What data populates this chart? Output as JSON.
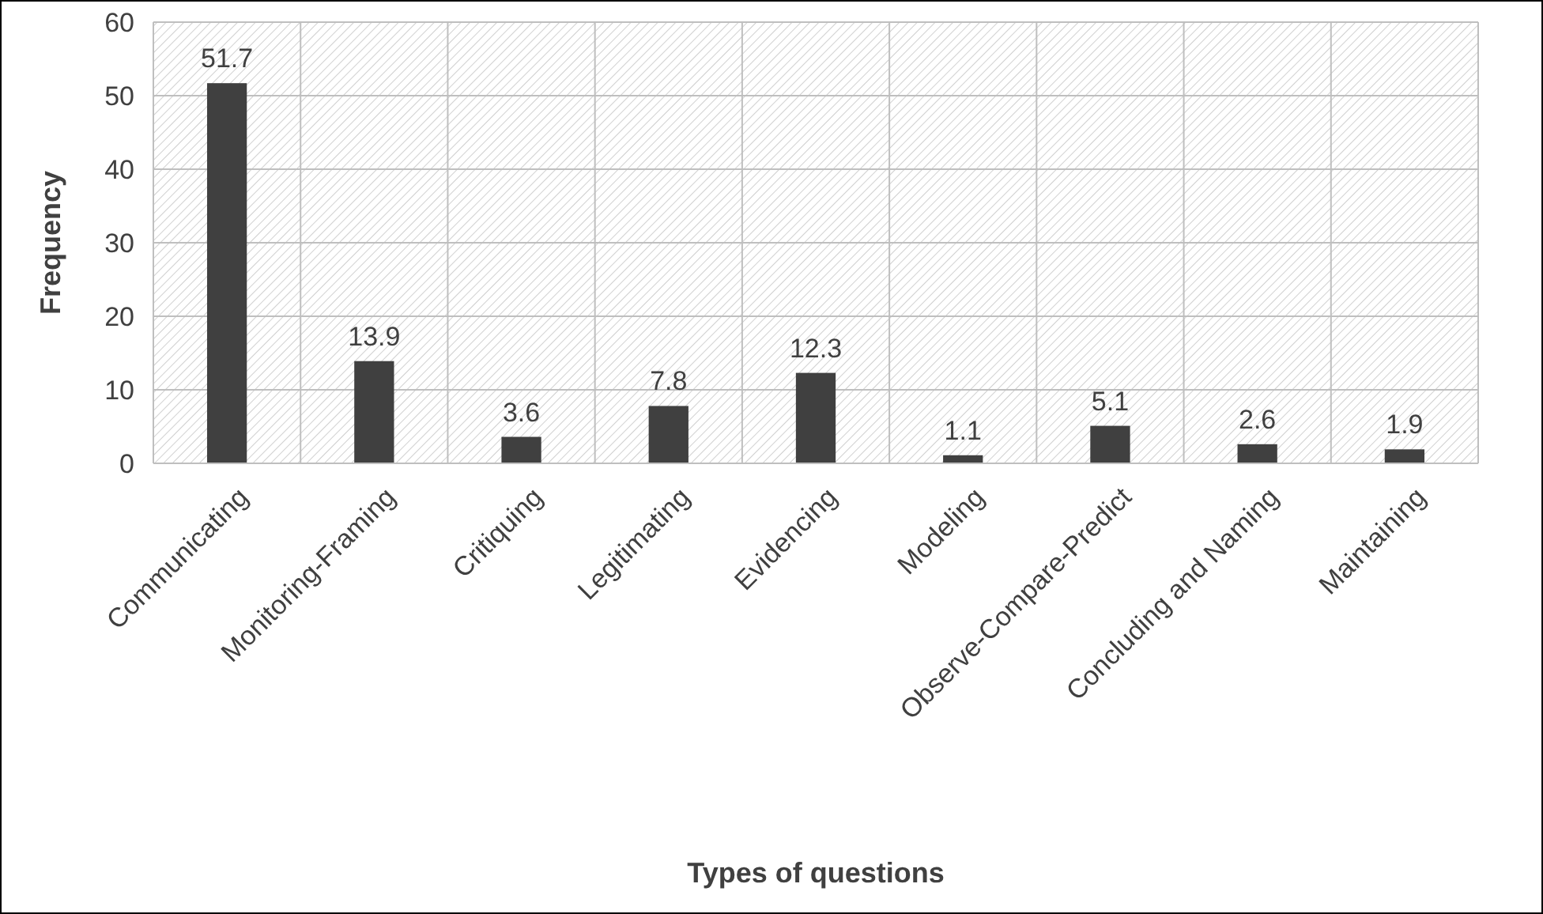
{
  "chart_data": {
    "type": "bar",
    "xlabel": "Types of questions",
    "ylabel": "Frequency",
    "categories": [
      "Communicating",
      "Monitoring-Framing",
      "Critiquing",
      "Legitimating",
      "Evidencing",
      "Modeling",
      "Observe-Compare-Predict",
      "Concluding and Naming",
      "Maintaining"
    ],
    "values": [
      51.7,
      13.9,
      3.6,
      7.8,
      12.3,
      1.1,
      5.1,
      2.6,
      1.9
    ],
    "color": "#404040",
    "ylim": [
      0,
      60
    ],
    "yticks": [
      0,
      10,
      20,
      30,
      40,
      50,
      60
    ],
    "grid": true,
    "data_labels": true
  }
}
